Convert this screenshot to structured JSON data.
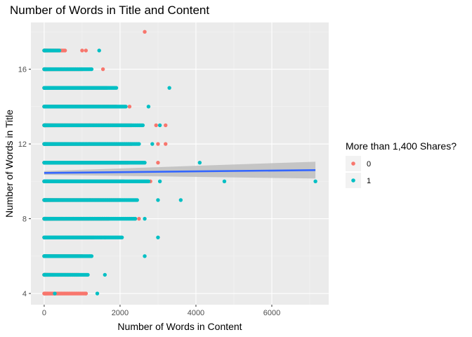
{
  "chart_data": {
    "type": "scatter",
    "title": "Number of Words in Title and Content",
    "xlabel": "Number of Words in Content",
    "ylabel": "Number of Words in Title",
    "xlim": [
      -350,
      7500
    ],
    "ylim": [
      3.4,
      18.5
    ],
    "x_ticks": [
      0,
      2000,
      4000,
      6000
    ],
    "y_ticks": [
      4,
      8,
      12,
      16
    ],
    "x_tick_labels": [
      "0",
      "2000",
      "4000",
      "6000"
    ],
    "y_tick_labels": [
      "4",
      "8",
      "12",
      "16"
    ],
    "grid": true,
    "legend": {
      "title": "More than 1,400 Shares?",
      "position": "right",
      "entries": [
        {
          "label": "0",
          "color": "#F8766D"
        },
        {
          "label": "1",
          "color": "#00BFC4"
        }
      ]
    },
    "series": [
      {
        "label": "0",
        "color": "#F8766D",
        "rows": [
          {
            "y": 4,
            "x_max": 1100,
            "extra": [
              1100
            ]
          },
          {
            "y": 5,
            "x_max": 900,
            "extra": []
          },
          {
            "y": 6,
            "x_max": 1000,
            "extra": []
          },
          {
            "y": 7,
            "x_max": 1300,
            "extra": [
              1500,
              1600
            ]
          },
          {
            "y": 8,
            "x_max": 1700,
            "extra": [
              2400,
              2500
            ]
          },
          {
            "y": 9,
            "x_max": 2000,
            "extra": []
          },
          {
            "y": 10,
            "x_max": 2100,
            "extra": [
              2800
            ]
          },
          {
            "y": 11,
            "x_max": 2200,
            "extra": [
              3000
            ]
          },
          {
            "y": 12,
            "x_max": 2300,
            "extra": [
              3000,
              3200
            ]
          },
          {
            "y": 13,
            "x_max": 2300,
            "extra": [
              2950,
              3200
            ]
          },
          {
            "y": 14,
            "x_max": 1900,
            "extra": [
              2250
            ]
          },
          {
            "y": 15,
            "x_max": 1650,
            "extra": []
          },
          {
            "y": 16,
            "x_max": 1000,
            "extra": [
              1550
            ]
          },
          {
            "y": 17,
            "x_max": 550,
            "extra": [
              1100,
              1000
            ]
          },
          {
            "y": 18,
            "x_max": 0,
            "extra": [
              2650
            ]
          }
        ]
      },
      {
        "label": "1",
        "color": "#00BFC4",
        "rows": [
          {
            "y": 4,
            "x_max": 0,
            "extra": [
              280,
              1400
            ]
          },
          {
            "y": 5,
            "x_max": 1150,
            "extra": [
              1600
            ]
          },
          {
            "y": 6,
            "x_max": 1250,
            "extra": [
              2650
            ]
          },
          {
            "y": 7,
            "x_max": 2050,
            "extra": [
              3000
            ]
          },
          {
            "y": 8,
            "x_max": 2400,
            "extra": [
              2650
            ]
          },
          {
            "y": 9,
            "x_max": 2450,
            "extra": [
              3000,
              3600
            ]
          },
          {
            "y": 10,
            "x_max": 2750,
            "extra": [
              3050,
              4750,
              7150
            ]
          },
          {
            "y": 11,
            "x_max": 2650,
            "extra": [
              4100
            ]
          },
          {
            "y": 12,
            "x_max": 2500,
            "extra": [
              2850
            ]
          },
          {
            "y": 13,
            "x_max": 2600,
            "extra": [
              3050
            ]
          },
          {
            "y": 14,
            "x_max": 2150,
            "extra": [
              2750
            ]
          },
          {
            "y": 15,
            "x_max": 1900,
            "extra": [
              3300
            ]
          },
          {
            "y": 16,
            "x_max": 1250,
            "extra": []
          },
          {
            "y": 17,
            "x_max": 400,
            "extra": [
              1450
            ]
          }
        ]
      }
    ],
    "trend_line": {
      "color": "#3366FF",
      "x": [
        0,
        7150
      ],
      "y": [
        10.45,
        10.6
      ],
      "ci_lower": [
        10.35,
        10.15
      ],
      "ci_upper": [
        10.55,
        11.05
      ],
      "ci_color": "#BEBEBE"
    }
  }
}
